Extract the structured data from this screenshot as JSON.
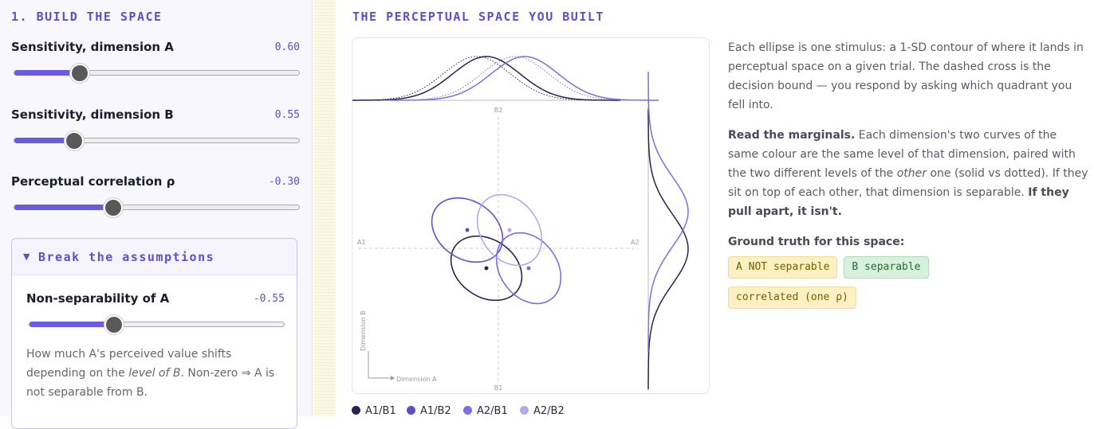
{
  "sidebar": {
    "title": "1. BUILD THE SPACE",
    "sliders": [
      {
        "label": "Sensitivity, dimension A",
        "value": "0.60"
      },
      {
        "label": "Sensitivity, dimension B",
        "value": "0.55"
      },
      {
        "label": "Perceptual correlation ρ",
        "value": "-0.30"
      }
    ],
    "details": {
      "summary": "Break the assumptions",
      "slider": {
        "label": "Non-separability of A",
        "value": "-0.55"
      },
      "description": [
        "How much A's perceived value shifts depending on the ",
        "level of B",
        ". Non-zero ⇒ A is not separable from B."
      ]
    }
  },
  "main": {
    "title": "THE PERCEPTUAL SPACE YOU BUILT",
    "plot": {
      "top_label": "B2",
      "bottom_label": "B1",
      "left_label": "A1",
      "right_label": "A2",
      "x_axis": "Dimension A",
      "y_axis": "Dimension B"
    },
    "legend": [
      "A1/B1",
      "A1/B2",
      "A2/B1",
      "A2/B2"
    ],
    "text": {
      "p1": "Each ellipse is one stimulus: a 1-SD contour of where it lands in perceptual space on a given trial. The dashed cross is the decision bound — you respond by asking which quadrant you fell into.",
      "p2": [
        "Read the marginals.",
        " Each dimension's two curves of the same colour are the same level of that dimension, paired with the two different levels of the ",
        "other",
        " one (solid vs dotted). If they sit on top of each other, that dimension is separable. ",
        "If they pull apart, it isn't."
      ],
      "ground_truth": "Ground truth for this space:",
      "tags": [
        "A NOT separable",
        "B separable",
        "correlated (one ρ)"
      ]
    }
  }
}
